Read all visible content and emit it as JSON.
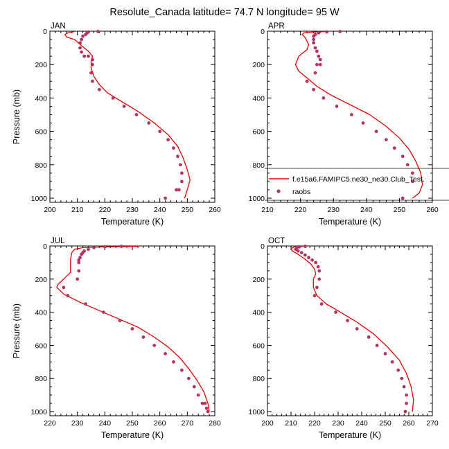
{
  "title": "Resolute_Canada  latitude= 74.7 N longitude= 95 W",
  "colors": {
    "model": "#e00000",
    "obs": "#b03565",
    "axis": "#000000"
  },
  "chart_data": [
    {
      "type": "line",
      "panel": "JAN",
      "xlabel": "Temperature (K)",
      "ylabel": "Pressure (mb)",
      "xlim": [
        200,
        260
      ],
      "xticks": [
        200,
        210,
        220,
        230,
        240,
        250,
        260
      ],
      "ylim": [
        1025,
        0
      ],
      "yticks": [
        0,
        200,
        400,
        600,
        800,
        1000
      ],
      "series": [
        {
          "name": "f.e15a6.FAMIPC5.ne30_ne30.Club_Test.",
          "style": "line",
          "x": [
            209,
            208,
            206.5,
            205.5,
            206,
            209,
            211,
            214,
            215.5,
            215,
            215,
            216,
            218,
            221,
            226,
            232,
            238,
            243,
            246.5,
            248.5,
            250,
            251,
            250,
            249
          ],
          "y": [
            2,
            5,
            10,
            20,
            35,
            50,
            80,
            120,
            150,
            180,
            220,
            270,
            320,
            370,
            420,
            480,
            550,
            620,
            690,
            760,
            830,
            890,
            950,
            1000
          ]
        },
        {
          "name": "raobs",
          "style": "points",
          "x": [
            217.5,
            214,
            213.5,
            213,
            212,
            211.5,
            211,
            211,
            211.5,
            212.5,
            214,
            215.5,
            215.5,
            215,
            215.5,
            218,
            223,
            227,
            231.5,
            236,
            240,
            243,
            245,
            246.5,
            247.5,
            248,
            248,
            247,
            246,
            242
          ],
          "y": [
            2,
            5,
            10,
            20,
            30,
            50,
            70,
            100,
            125,
            150,
            150,
            170,
            200,
            250,
            300,
            350,
            400,
            450,
            500,
            550,
            600,
            650,
            700,
            750,
            800,
            850,
            900,
            950,
            950,
            1000
          ]
        }
      ]
    },
    {
      "type": "line",
      "panel": "APR",
      "xlabel": "Temperature (K)",
      "ylabel": "",
      "xlim": [
        210,
        260
      ],
      "xticks": [
        210,
        220,
        230,
        240,
        250,
        260
      ],
      "ylim": [
        1025,
        0
      ],
      "yticks": [
        0,
        200,
        400,
        600,
        800,
        1000
      ],
      "legend": {
        "placement": "right-inside",
        "entries": [
          "f.e15a6.FAMIPC5.ne30_ne30.Club_Test.",
          "raobs"
        ]
      },
      "series": [
        {
          "name": "f.e15a6.FAMIPC5.ne30_ne30.Club_Test.",
          "style": "line",
          "x": [
            228,
            224,
            221,
            220.5,
            221.5,
            222.5,
            222,
            219.5,
            218.5,
            219.5,
            222,
            225,
            229,
            235,
            241,
            246,
            250,
            253,
            255,
            256.5,
            257,
            256,
            254
          ],
          "y": [
            2,
            5,
            10,
            20,
            40,
            80,
            110,
            150,
            200,
            240,
            280,
            330,
            380,
            440,
            500,
            570,
            640,
            710,
            780,
            850,
            920,
            970,
            1000
          ]
        },
        {
          "name": "raobs",
          "style": "points",
          "x": [
            232,
            228,
            225.5,
            224.5,
            224,
            224,
            224,
            224.5,
            225,
            225.5,
            226,
            226,
            225,
            224.5,
            222,
            224,
            227,
            231,
            235.5,
            239,
            243,
            246,
            248.5,
            251,
            252.5,
            254,
            254,
            251
          ],
          "y": [
            2,
            5,
            10,
            20,
            30,
            50,
            70,
            100,
            120,
            150,
            170,
            200,
            200,
            250,
            300,
            350,
            400,
            450,
            500,
            550,
            600,
            650,
            700,
            750,
            800,
            850,
            900,
            1000
          ]
        }
      ]
    },
    {
      "type": "line",
      "panel": "JUL",
      "xlabel": "Temperature (K)",
      "ylabel": "Pressure (mb)",
      "xlim": [
        220,
        280
      ],
      "xticks": [
        220,
        230,
        240,
        250,
        260,
        270,
        280
      ],
      "ylim": [
        1025,
        0
      ],
      "yticks": [
        0,
        200,
        400,
        600,
        800,
        1000
      ],
      "series": [
        {
          "name": "f.e15a6.FAMIPC5.ne30_ne30.Club_Test.",
          "style": "line",
          "x": [
            252,
            240,
            232,
            229,
            228,
            227.5,
            227.5,
            225,
            223,
            222.5,
            225,
            231,
            238,
            245,
            252,
            258,
            263,
            267,
            270.5,
            273.5,
            276,
            277.5,
            278
          ],
          "y": [
            2,
            5,
            10,
            20,
            40,
            80,
            160,
            200,
            230,
            250,
            290,
            340,
            390,
            440,
            490,
            550,
            610,
            670,
            740,
            810,
            880,
            950,
            1000
          ]
        },
        {
          "name": "raobs",
          "style": "points",
          "x": [
            246,
            240,
            236,
            234,
            232.5,
            232,
            231.5,
            231,
            230.5,
            230.5,
            230.5,
            230,
            225,
            226.5,
            233,
            239.5,
            245.5,
            250,
            254,
            258,
            262,
            265,
            268,
            270.5,
            272.5,
            274,
            275.5,
            276.5,
            277,
            277.5
          ],
          "y": [
            2,
            5,
            10,
            20,
            30,
            40,
            50,
            70,
            85,
            100,
            150,
            200,
            250,
            300,
            350,
            400,
            450,
            500,
            550,
            600,
            650,
            700,
            750,
            800,
            850,
            900,
            950,
            950,
            980,
            1000
          ]
        }
      ]
    },
    {
      "type": "line",
      "panel": "OCT",
      "xlabel": "Temperature (K)",
      "ylabel": "",
      "xlim": [
        200,
        270
      ],
      "xticks": [
        200,
        210,
        220,
        230,
        240,
        250,
        260,
        270
      ],
      "ylim": [
        1025,
        0
      ],
      "yticks": [
        0,
        200,
        400,
        600,
        800,
        1000
      ],
      "series": [
        {
          "name": "f.e15a6.FAMIPC5.ne30_ne30.Club_Test.",
          "style": "line",
          "x": [
            215,
            211.5,
            210,
            210.5,
            213,
            216,
            218.5,
            220,
            220.5,
            219.5,
            219.5,
            221,
            225,
            231,
            238,
            245,
            251,
            256,
            259,
            261,
            262,
            261.5
          ],
          "y": [
            2,
            5,
            15,
            30,
            50,
            80,
            110,
            140,
            170,
            200,
            250,
            300,
            350,
            400,
            460,
            530,
            610,
            690,
            770,
            850,
            930,
            1000
          ]
        },
        {
          "name": "raobs",
          "style": "points",
          "x": [
            216,
            213.5,
            212.5,
            212,
            213,
            214.5,
            216,
            217.5,
            219,
            220.5,
            221.5,
            222,
            222,
            221,
            220,
            223,
            229,
            234,
            238,
            243,
            246.5,
            250,
            253,
            255.5,
            257,
            258,
            259,
            259,
            258.5
          ],
          "y": [
            2,
            5,
            10,
            20,
            30,
            40,
            55,
            70,
            85,
            100,
            125,
            150,
            200,
            250,
            300,
            350,
            400,
            450,
            500,
            550,
            600,
            650,
            700,
            750,
            800,
            850,
            900,
            950,
            1000
          ]
        }
      ]
    }
  ]
}
